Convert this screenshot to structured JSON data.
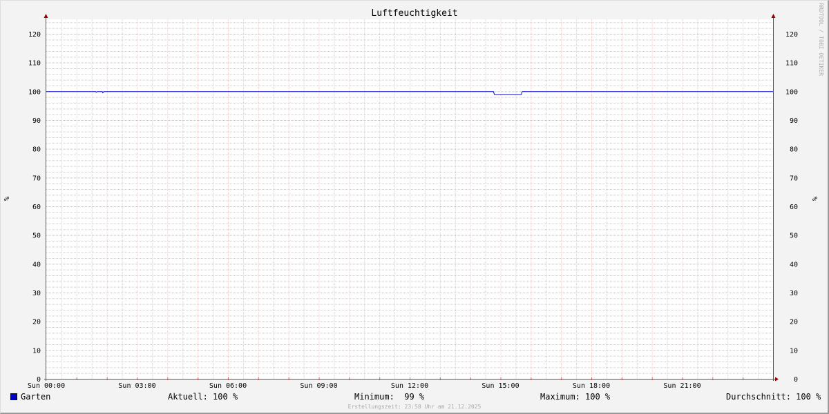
{
  "chart_data": {
    "type": "line",
    "title": "Luftfeuchtigkeit",
    "ylabel": "%",
    "ylabel_right": "%",
    "ylim": [
      0,
      125
    ],
    "yticks": [
      0,
      10,
      20,
      30,
      40,
      50,
      60,
      70,
      80,
      90,
      100,
      110,
      120
    ],
    "xlim": [
      "00:00",
      "24:00"
    ],
    "xticks": [
      "Sun 00:00",
      "Sun 03:00",
      "Sun 06:00",
      "Sun 09:00",
      "Sun 12:00",
      "Sun 15:00",
      "Sun 18:00",
      "Sun 21:00"
    ],
    "grid": true,
    "series": [
      {
        "name": "Garten",
        "color": "#0000cc",
        "points": [
          [
            "00:00",
            100
          ],
          [
            "01:38",
            100
          ],
          [
            "01:39",
            99.8
          ],
          [
            "01:41",
            100
          ],
          [
            "01:51",
            100
          ],
          [
            "01:52",
            99.6
          ],
          [
            "01:54",
            100
          ],
          [
            "14:46",
            100
          ],
          [
            "14:48",
            99
          ],
          [
            "15:41",
            99
          ],
          [
            "15:43",
            100
          ],
          [
            "24:00",
            100
          ]
        ]
      }
    ],
    "legend": {
      "placement": "bottom",
      "entry": "Garten",
      "aktuell": "Aktuell: 100 %",
      "minimum": "Minimum:  99 %",
      "maximum": "Maximum: 100 %",
      "durchschnitt": "Durchschnitt: 100 %"
    }
  },
  "footer": "Erstellungszeit: 23:58 Uhr am 21.12.2025",
  "watermark": "RRDTOOL / TOBI OETIKER"
}
